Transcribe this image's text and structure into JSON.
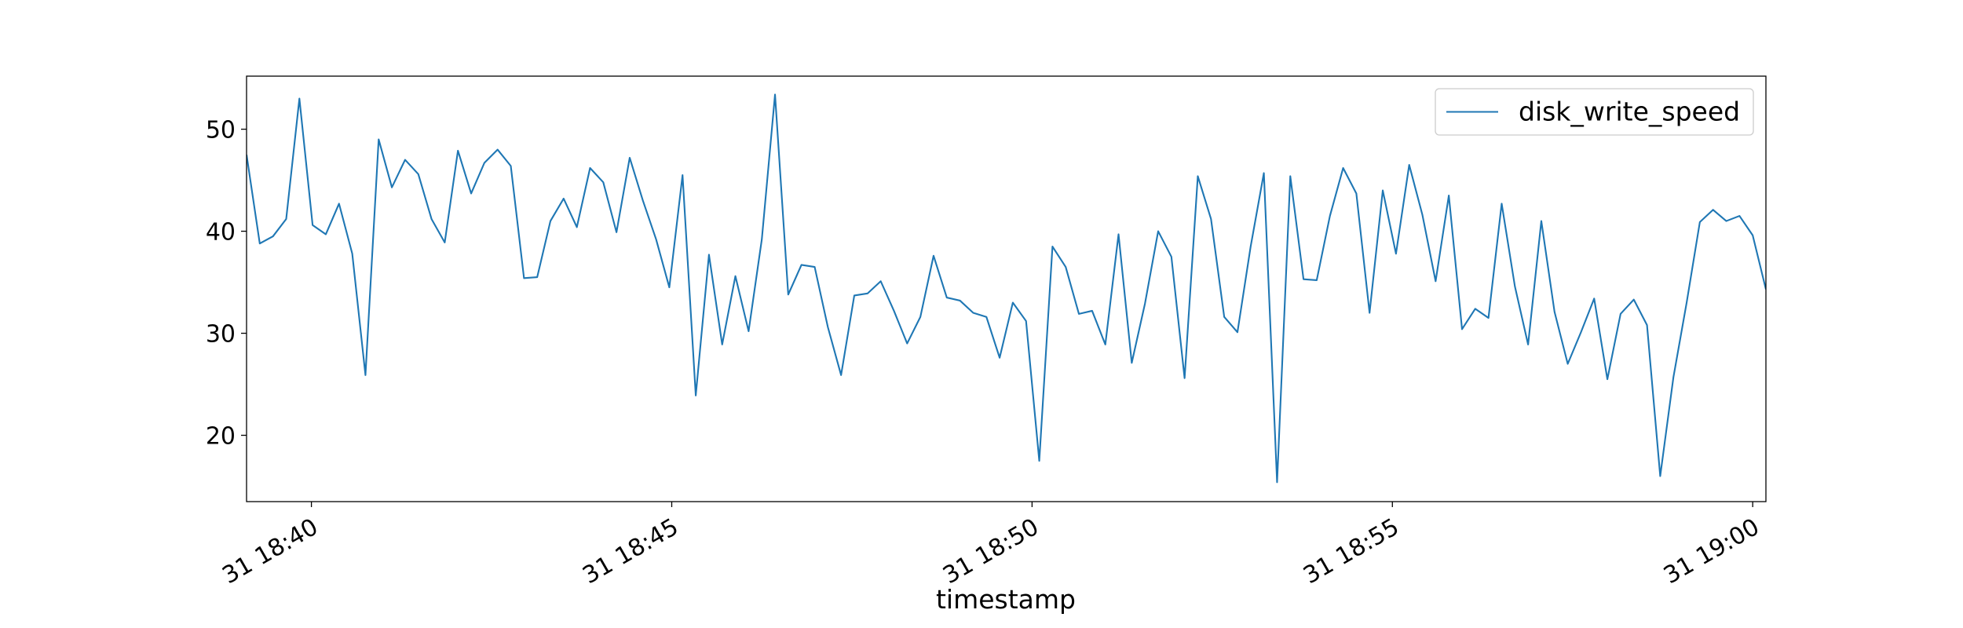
{
  "chart_data": {
    "type": "line",
    "x_label": "timestamp",
    "x": [
      "31 18:39:06",
      "31 18:39:17",
      "31 18:39:28",
      "31 18:39:39",
      "31 18:39:50",
      "31 18:40:01",
      "31 18:40:12",
      "31 18:40:23",
      "31 18:40:34",
      "31 18:40:45",
      "31 18:40:56",
      "31 18:41:07",
      "31 18:41:18",
      "31 18:41:29",
      "31 18:41:40",
      "31 18:41:51",
      "31 18:42:02",
      "31 18:42:13",
      "31 18:42:24",
      "31 18:42:35",
      "31 18:42:46",
      "31 18:42:57",
      "31 18:43:08",
      "31 18:43:19",
      "31 18:43:30",
      "31 18:43:41",
      "31 18:43:52",
      "31 18:44:03",
      "31 18:44:14",
      "31 18:44:25",
      "31 18:44:36",
      "31 18:44:47",
      "31 18:44:58",
      "31 18:45:09",
      "31 18:45:20",
      "31 18:45:31",
      "31 18:45:42",
      "31 18:45:53",
      "31 18:46:04",
      "31 18:46:15",
      "31 18:46:26",
      "31 18:46:37",
      "31 18:46:48",
      "31 18:46:59",
      "31 18:47:10",
      "31 18:47:21",
      "31 18:47:32",
      "31 18:47:43",
      "31 18:47:54",
      "31 18:48:05",
      "31 18:48:16",
      "31 18:48:27",
      "31 18:48:38",
      "31 18:48:49",
      "31 18:49:00",
      "31 18:49:11",
      "31 18:49:22",
      "31 18:49:33",
      "31 18:49:44",
      "31 18:49:55",
      "31 18:50:06",
      "31 18:50:17",
      "31 18:50:28",
      "31 18:50:39",
      "31 18:50:50",
      "31 18:51:01",
      "31 18:51:12",
      "31 18:51:23",
      "31 18:51:34",
      "31 18:51:45",
      "31 18:51:56",
      "31 18:52:07",
      "31 18:52:18",
      "31 18:52:29",
      "31 18:52:40",
      "31 18:52:51",
      "31 18:53:02",
      "31 18:53:13",
      "31 18:53:24",
      "31 18:53:35",
      "31 18:53:46",
      "31 18:53:57",
      "31 18:54:08",
      "31 18:54:19",
      "31 18:54:30",
      "31 18:54:41",
      "31 18:54:52",
      "31 18:55:03",
      "31 18:55:14",
      "31 18:55:25",
      "31 18:55:36",
      "31 18:55:47",
      "31 18:55:58",
      "31 18:56:09",
      "31 18:56:20",
      "31 18:56:31",
      "31 18:56:42",
      "31 18:56:53",
      "31 18:57:04",
      "31 18:57:15",
      "31 18:57:26",
      "31 18:57:37",
      "31 18:57:48",
      "31 18:57:59",
      "31 18:58:10",
      "31 18:58:21",
      "31 18:58:32",
      "31 18:58:43",
      "31 18:58:54",
      "31 18:59:05",
      "31 18:59:16",
      "31 18:59:27",
      "31 18:59:38",
      "31 18:59:49",
      "31 19:00:00",
      "31 19:00:11"
    ],
    "series": [
      {
        "name": "disk_write_speed",
        "color": "#1f77b4",
        "values": [
          47.5,
          38.8,
          39.5,
          41.2,
          53,
          40.6,
          39.7,
          42.7,
          37.8,
          25.9,
          49,
          44.3,
          47,
          45.6,
          41.2,
          38.9,
          47.9,
          43.7,
          46.7,
          48,
          46.4,
          35.4,
          35.5,
          41,
          43.2,
          40.4,
          46.2,
          44.8,
          39.9,
          47.2,
          43,
          39.2,
          34.5,
          45.5,
          23.9,
          37.7,
          28.9,
          35.6,
          30.2,
          39.2,
          53.4,
          33.8,
          36.7,
          36.5,
          30.6,
          25.9,
          33.7,
          33.9,
          35.1,
          32.2,
          29,
          31.6,
          37.6,
          33.5,
          33.2,
          32,
          31.6,
          27.6,
          33,
          31.2,
          17.5,
          38.5,
          36.5,
          31.9,
          32.2,
          28.9,
          39.7,
          27.1,
          32.9,
          40,
          37.5,
          25.6,
          45.4,
          41.2,
          31.6,
          30.1,
          38.5,
          45.7,
          15.4,
          45.4,
          35.3,
          35.2,
          41.5,
          46.2,
          43.7,
          32,
          44,
          37.8,
          46.5,
          41.6,
          35.1,
          43.5,
          30.4,
          32.4,
          31.5,
          42.7,
          34.6,
          28.9,
          41,
          32.1,
          27,
          30.1,
          33.4,
          25.5,
          31.9,
          33.3,
          30.8,
          16,
          25.7,
          33,
          40.9,
          42.1,
          41,
          41.5,
          39.6,
          34.3
        ]
      }
    ],
    "xlim": [
      "31 18:39:06",
      "31 19:00:11"
    ],
    "xticks": [
      "31 18:40",
      "31 18:45",
      "31 18:50",
      "31 18:55",
      "31 19:00"
    ],
    "ylim": [
      13.5,
      55.2
    ],
    "yticks": [
      20,
      30,
      40,
      50
    ],
    "legend": "upper right"
  }
}
